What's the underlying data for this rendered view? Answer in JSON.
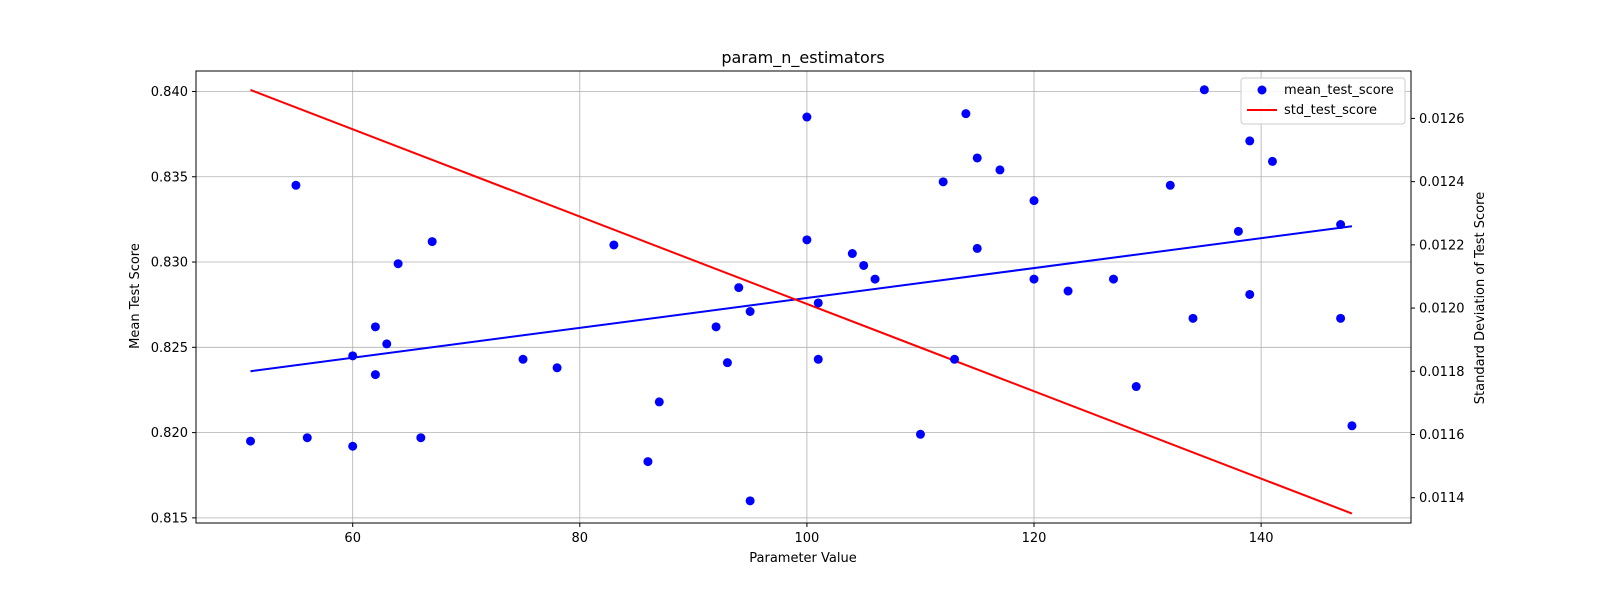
{
  "chart_data": {
    "type": "scatter",
    "title": "param_n_estimators",
    "xlabel": "Parameter Value",
    "ylabel": "Mean Test Score",
    "ylabel_right": "Standard Deviation of Test Score",
    "xlim": [
      46.2,
      153.2
    ],
    "ylim": [
      0.8147,
      0.8412
    ],
    "ylim_right": [
      0.01132,
      0.01275
    ],
    "x_ticks": [
      60,
      80,
      100,
      120,
      140
    ],
    "y_ticks": [
      0.815,
      0.82,
      0.825,
      0.83,
      0.835,
      0.84
    ],
    "y_ticks_right": [
      0.0114,
      0.0116,
      0.0118,
      0.012,
      0.0122,
      0.0124,
      0.0126
    ],
    "grid": true,
    "legend_position": "top-right",
    "colors": {
      "points": "#0000ff",
      "mean_trend": "#0000ff",
      "std_trend": "#ff0000"
    },
    "series": [
      {
        "name": "mean_test_score",
        "kind": "scatter",
        "axis": "left",
        "x": [
          51,
          55,
          56,
          60,
          60,
          62,
          62,
          63,
          64,
          66,
          67,
          75,
          78,
          83,
          86,
          87,
          92,
          93,
          94,
          95,
          95,
          100,
          100,
          101,
          101,
          104,
          105,
          106,
          110,
          112,
          113,
          114,
          115,
          115,
          117,
          120,
          120,
          123,
          127,
          129,
          132,
          134,
          135,
          138,
          139,
          139,
          141,
          147,
          147,
          148
        ],
        "y": [
          0.8195,
          0.8345,
          0.8197,
          0.8245,
          0.8192,
          0.8262,
          0.8234,
          0.8252,
          0.8299,
          0.8197,
          0.8312,
          0.8243,
          0.8238,
          0.831,
          0.8183,
          0.8218,
          0.8262,
          0.8241,
          0.8285,
          0.8271,
          0.816,
          0.8385,
          0.8313,
          0.8276,
          0.8243,
          0.8305,
          0.8298,
          0.829,
          0.8199,
          0.8347,
          0.8243,
          0.8387,
          0.8361,
          0.8308,
          0.8354,
          0.8336,
          0.829,
          0.8283,
          0.829,
          0.8227,
          0.8345,
          0.8267,
          0.8401,
          0.8318,
          0.8371,
          0.8281,
          0.8359,
          0.8322,
          0.8267,
          0.8204
        ]
      },
      {
        "name": "",
        "kind": "line",
        "axis": "left",
        "x": [
          51,
          148
        ],
        "y": [
          0.8236,
          0.8321
        ]
      },
      {
        "name": "std_test_score",
        "kind": "line",
        "axis": "right",
        "x": [
          51,
          148
        ],
        "y": [
          0.01269,
          0.01135
        ]
      }
    ]
  }
}
